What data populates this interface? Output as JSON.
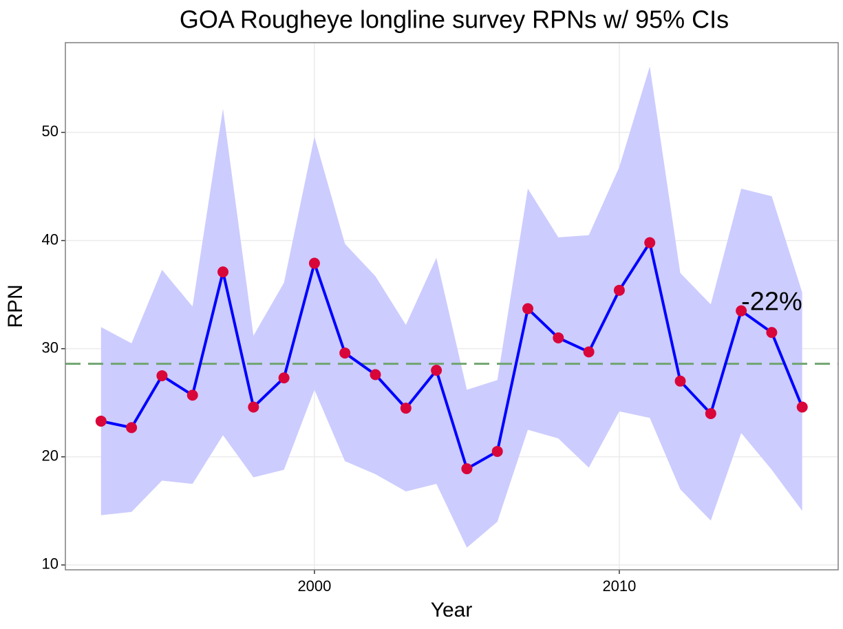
{
  "chart_data": {
    "type": "line",
    "title": "GOA Rougheye longline survey RPNs w/ 95% CIs",
    "x_label": "Year",
    "y_label": "RPN",
    "x": [
      1993,
      1994,
      1995,
      1996,
      1997,
      1998,
      1999,
      2000,
      2001,
      2002,
      2003,
      2004,
      2005,
      2006,
      2007,
      2008,
      2009,
      2010,
      2011,
      2012,
      2013,
      2014,
      2015,
      2016
    ],
    "values": [
      23.3,
      22.7,
      27.5,
      25.7,
      37.1,
      24.6,
      27.3,
      37.9,
      29.6,
      27.6,
      24.5,
      28.0,
      18.9,
      20.5,
      33.7,
      31.0,
      29.7,
      35.4,
      39.8,
      27.0,
      24.0,
      33.5,
      31.5,
      24.6
    ],
    "upper": [
      32.0,
      30.5,
      37.3,
      33.9,
      52.2,
      31.2,
      36.1,
      49.6,
      39.7,
      36.7,
      32.2,
      38.4,
      26.2,
      27.1,
      44.8,
      40.3,
      40.5,
      46.8,
      56.1,
      37.0,
      34.1,
      44.8,
      44.1,
      35.2
    ],
    "lower": [
      14.6,
      14.9,
      17.8,
      17.5,
      22.0,
      18.1,
      18.8,
      26.2,
      19.6,
      18.4,
      16.8,
      17.5,
      11.6,
      14.0,
      22.5,
      21.7,
      19.0,
      24.2,
      23.6,
      17.0,
      14.1,
      22.2,
      18.8,
      15.0
    ],
    "color": "#0000ff",
    "point_color": "#d9063a",
    "band_color": "#ccccff",
    "hline": {
      "value": 28.6,
      "color": "#6fa46f"
    },
    "annotation": {
      "text": "-22%",
      "x": 2015,
      "y": 34.2
    },
    "xlim": [
      1991.83,
      2017.18
    ],
    "ylim": [
      9.55,
      58.3
    ],
    "xticks": [
      2000,
      2010
    ],
    "yticks": [
      10,
      20,
      30,
      40,
      50
    ],
    "grid": true
  }
}
